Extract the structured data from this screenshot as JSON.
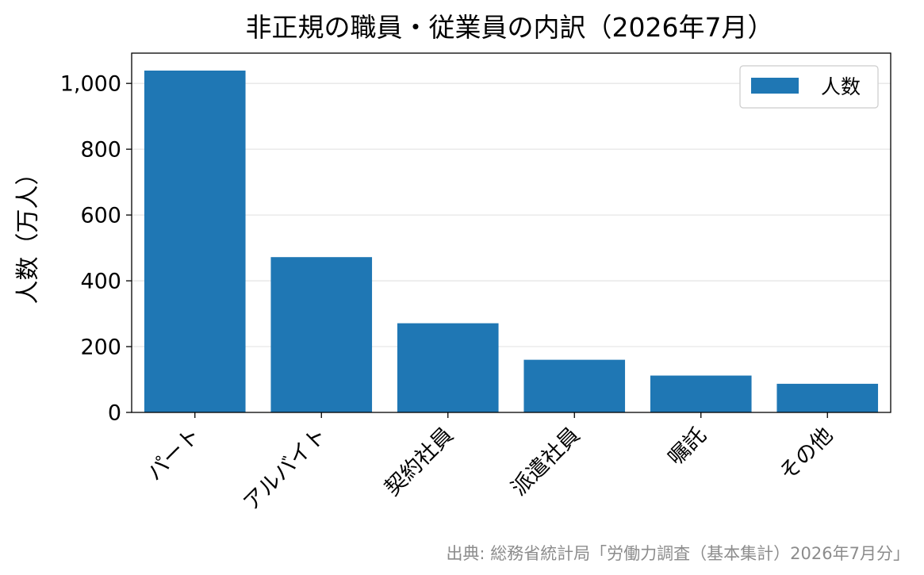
{
  "chart_data": {
    "type": "bar",
    "title": "非正規の職員・従業員の内訳（2026年7月）",
    "xlabel": "",
    "ylabel": "人数（万人）",
    "categories": [
      "パート",
      "アルバイト",
      "契約社員",
      "派遣社員",
      "嘱託",
      "その他"
    ],
    "series": [
      {
        "name": "人数",
        "values": [
          1039,
          472,
          271,
          160,
          112,
          87
        ],
        "color": "#1f77b4"
      }
    ],
    "ylim": [
      0,
      1092
    ],
    "yticks": [
      0,
      200,
      400,
      600,
      800,
      1000
    ],
    "ytick_labels": [
      "0",
      "200",
      "400",
      "600",
      "800",
      "1,000"
    ],
    "grid": "horizontal",
    "legend_position": "upper right"
  },
  "source_note": "出典: 総務省統計局「労働力調査（基本集計）2026年7月分」"
}
